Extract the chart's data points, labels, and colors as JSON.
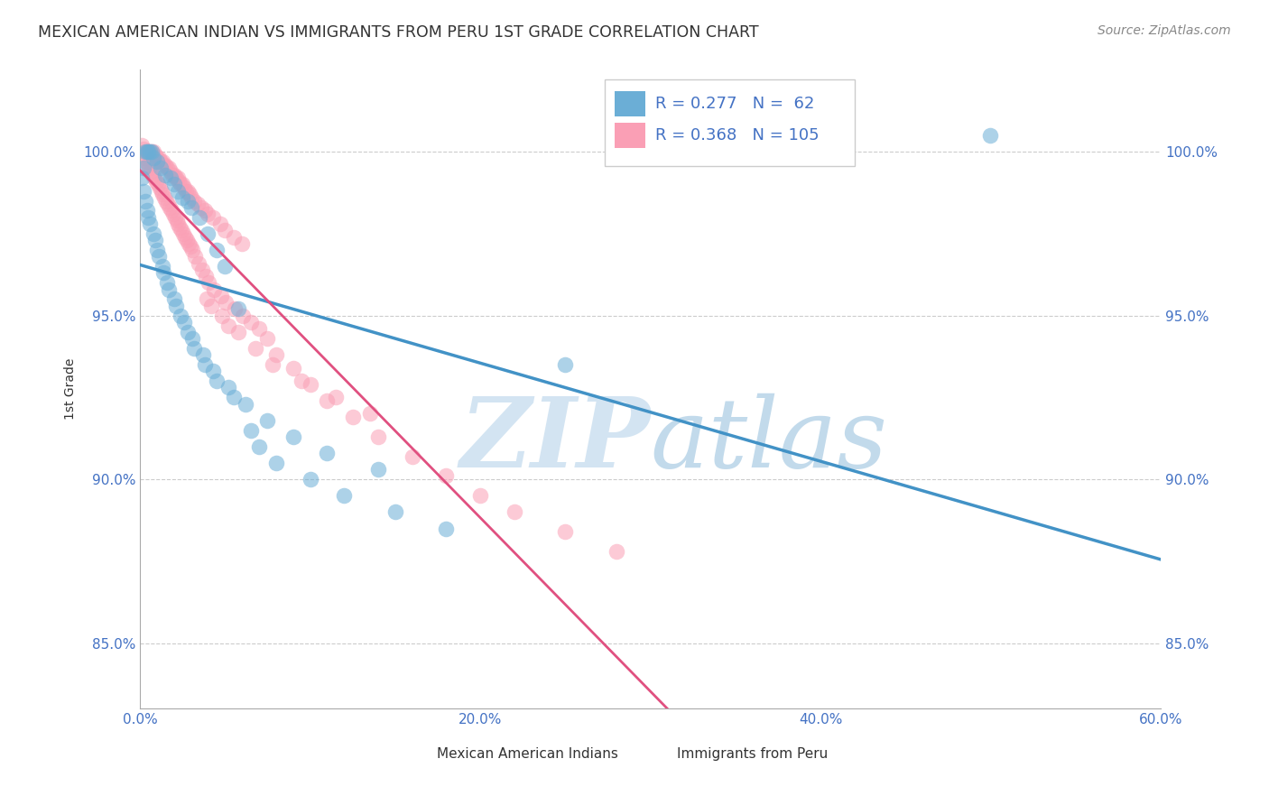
{
  "title": "MEXICAN AMERICAN INDIAN VS IMMIGRANTS FROM PERU 1ST GRADE CORRELATION CHART",
  "source": "Source: ZipAtlas.com",
  "xlabel_vals": [
    0.0,
    20.0,
    40.0,
    60.0
  ],
  "ylabel_vals": [
    85.0,
    90.0,
    95.0,
    100.0
  ],
  "xlim": [
    0.0,
    60.0
  ],
  "ylim": [
    83.0,
    102.5
  ],
  "ylabel": "1st Grade",
  "legend_label1": "Mexican American Indians",
  "legend_label2": "Immigrants from Peru",
  "R1": 0.277,
  "N1": 62,
  "R2": 0.368,
  "N2": 105,
  "color_blue": "#6baed6",
  "color_pink": "#fa9fb5",
  "color_blue_line": "#4292c6",
  "color_pink_line": "#e05080",
  "watermark_color": "#cce0f0",
  "axis_color": "#4472c4",
  "blue_x": [
    0.2,
    0.3,
    0.4,
    0.5,
    0.6,
    0.7,
    0.8,
    1.0,
    1.2,
    1.5,
    1.8,
    2.0,
    2.2,
    2.5,
    2.8,
    3.0,
    3.5,
    4.0,
    4.5,
    5.0,
    0.1,
    0.2,
    0.3,
    0.5,
    0.8,
    1.0,
    1.3,
    1.6,
    2.0,
    2.4,
    2.8,
    3.2,
    3.8,
    4.5,
    5.5,
    6.5,
    7.0,
    8.0,
    10.0,
    12.0,
    15.0,
    18.0,
    0.4,
    0.6,
    0.9,
    1.1,
    1.4,
    1.7,
    2.1,
    2.6,
    3.1,
    3.7,
    4.3,
    5.2,
    6.2,
    7.5,
    9.0,
    11.0,
    14.0,
    50.0,
    25.0,
    5.8
  ],
  "blue_y": [
    99.5,
    100.0,
    100.0,
    100.0,
    100.0,
    100.0,
    99.8,
    99.7,
    99.5,
    99.3,
    99.2,
    99.0,
    98.8,
    98.6,
    98.5,
    98.3,
    98.0,
    97.5,
    97.0,
    96.5,
    99.2,
    98.8,
    98.5,
    98.0,
    97.5,
    97.0,
    96.5,
    96.0,
    95.5,
    95.0,
    94.5,
    94.0,
    93.5,
    93.0,
    92.5,
    91.5,
    91.0,
    90.5,
    90.0,
    89.5,
    89.0,
    88.5,
    98.2,
    97.8,
    97.3,
    96.8,
    96.3,
    95.8,
    95.3,
    94.8,
    94.3,
    93.8,
    93.3,
    92.8,
    92.3,
    91.8,
    91.3,
    90.8,
    90.3,
    100.5,
    93.5,
    95.2
  ],
  "pink_x": [
    0.1,
    0.2,
    0.3,
    0.4,
    0.5,
    0.6,
    0.7,
    0.8,
    0.9,
    1.0,
    1.1,
    1.2,
    1.3,
    1.4,
    1.5,
    1.6,
    1.7,
    1.8,
    1.9,
    2.0,
    2.1,
    2.2,
    2.3,
    2.4,
    2.5,
    2.6,
    2.7,
    2.8,
    2.9,
    3.0,
    3.2,
    3.4,
    3.6,
    3.8,
    4.0,
    4.3,
    4.7,
    5.0,
    5.5,
    6.0,
    0.15,
    0.25,
    0.35,
    0.45,
    0.55,
    0.65,
    0.75,
    0.85,
    0.95,
    1.05,
    1.15,
    1.25,
    1.35,
    1.45,
    1.55,
    1.65,
    1.75,
    1.85,
    1.95,
    2.05,
    2.15,
    2.25,
    2.35,
    2.45,
    2.55,
    2.65,
    2.75,
    2.85,
    2.95,
    3.05,
    3.25,
    3.45,
    3.65,
    3.85,
    4.05,
    4.35,
    4.75,
    5.05,
    5.55,
    6.05,
    6.5,
    7.0,
    7.5,
    8.0,
    9.0,
    10.0,
    11.0,
    12.5,
    14.0,
    16.0,
    18.0,
    20.0,
    22.0,
    25.0,
    28.0,
    3.9,
    4.2,
    4.8,
    5.2,
    5.8,
    6.8,
    7.8,
    9.5,
    11.5,
    13.5
  ],
  "pink_y": [
    100.2,
    100.1,
    100.0,
    100.0,
    100.0,
    100.0,
    100.0,
    100.0,
    99.9,
    99.8,
    99.8,
    99.7,
    99.7,
    99.6,
    99.6,
    99.5,
    99.5,
    99.4,
    99.3,
    99.3,
    99.2,
    99.2,
    99.1,
    99.0,
    99.0,
    98.9,
    98.8,
    98.8,
    98.7,
    98.6,
    98.5,
    98.4,
    98.3,
    98.2,
    98.1,
    98.0,
    97.8,
    97.6,
    97.4,
    97.2,
    99.9,
    99.8,
    99.7,
    99.6,
    99.5,
    99.4,
    99.3,
    99.2,
    99.1,
    99.0,
    98.9,
    98.8,
    98.7,
    98.6,
    98.5,
    98.4,
    98.3,
    98.2,
    98.1,
    98.0,
    97.9,
    97.8,
    97.7,
    97.6,
    97.5,
    97.4,
    97.3,
    97.2,
    97.1,
    97.0,
    96.8,
    96.6,
    96.4,
    96.2,
    96.0,
    95.8,
    95.6,
    95.4,
    95.2,
    95.0,
    94.8,
    94.6,
    94.3,
    93.8,
    93.4,
    92.9,
    92.4,
    91.9,
    91.3,
    90.7,
    90.1,
    89.5,
    89.0,
    88.4,
    87.8,
    95.5,
    95.3,
    95.0,
    94.7,
    94.5,
    94.0,
    93.5,
    93.0,
    92.5,
    92.0
  ]
}
